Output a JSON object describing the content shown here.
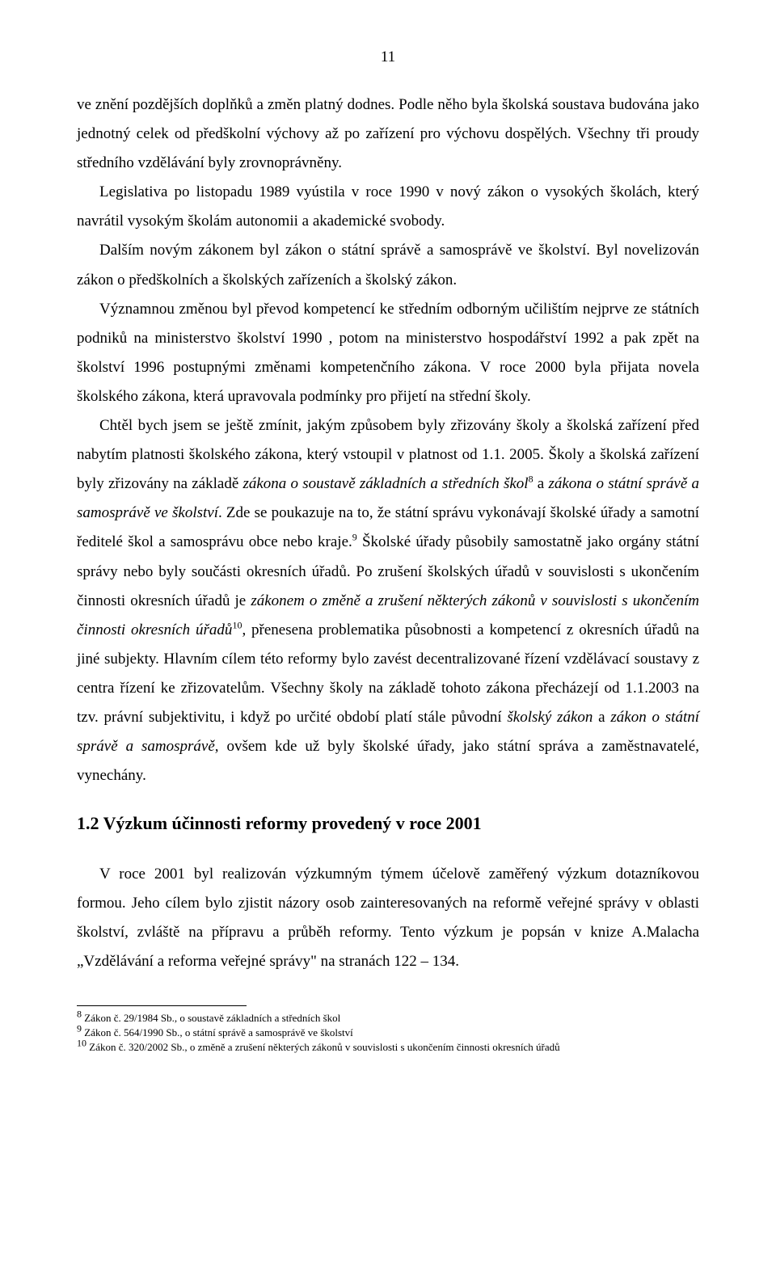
{
  "page_number": "11",
  "paragraphs": {
    "p1a": "ve znění pozdějších doplňků a změn platný dodnes. Podle něho byla školská soustava budována jako jednotný celek od předškolní výchovy až po zařízení pro výchovu dospělých. Všechny tři proudy středního vzdělávání byly zrovnoprávněny.",
    "p1b_indent": "Legislativa po listopadu 1989 vyústila v roce 1990 v nový zákon o vysokých školách, který navrátil vysokým školám autonomii a akademické svobody.",
    "p2_indent": "Dalším novým zákonem byl zákon o státní správě a samosprávě ve školství. Byl novelizován zákon o předškolních a školských zařízeních a školský zákon.",
    "p3_indent": "Významnou změnou byl převod kompetencí ke středním odborným učilištím nejprve ze státních podniků na ministerstvo školství  1990 , potom na ministerstvo hospodářství  1992  a pak zpět na školství  1996  postupnými změnami kompetenčního zákona. V roce 2000 byla přijata novela školského zákona, která upravovala podmínky pro přijetí na střední školy.",
    "p4_a": "Chtěl bych jsem se ještě zmínit, jakým způsobem byly zřizovány školy a školská zařízení před nabytím platnosti školského zákona, který vstoupil v platnost od 1.1. 2005. Školy a školská zařízení byly zřizovány na základě ",
    "p4_it1": "zákona  o soustavě základních a středních škol",
    "p4_sup1": "8",
    "p4_b": " a ",
    "p4_it2": "zákona o státní správě a samosprávě ve školství",
    "p4_c": ". Zde se poukazuje na to, že státní správu vykonávají školské úřady a samotní ředitelé škol a samosprávu obce nebo kraje.",
    "p4_sup2": "9",
    "p4_d": " Školské úřady působily samostatně jako orgány státní správy nebo byly součásti okresních úřadů. Po zrušení školských úřadů v souvislosti s ukončením činnosti okresních úřadů  je ",
    "p4_it3": "zákonem  o změně  a zrušení některých zákonů v souvislosti s ukončením činnosti okresních úřadů",
    "p4_sup3": "10",
    "p4_e": ", přenesena problematika působnosti a kompetencí z okresních úřadů na jiné subjekty. Hlavním cílem této reformy bylo zavést decentralizované řízení vzdělávací soustavy z centra řízení  ke zřizovatelům. Všechny školy na základě tohoto zákona přecházejí od 1.1.2003 na tzv. právní subjektivitu, i když po určité období platí stále původní ",
    "p4_it4": "školský zákon",
    "p4_f": " a ",
    "p4_it5": "zákon o státní správě a samosprávě",
    "p4_g": ", ovšem kde už byly školské úřady, jako státní správa a zaměstnavatelé, vynechány."
  },
  "heading": "1.2  Výzkum účinnosti reformy provedený v roce 2001",
  "p5_indent": "V roce 2001 byl realizován výzkumným týmem účelově zaměřený výzkum dotazníkovou formou. Jeho cílem bylo zjistit názory osob zainteresovaných na reformě veřejné správy v oblasti školství, zvláště na přípravu a průběh reformy. Tento výzkum je popsán v knize A.Malacha „Vzdělávání a reforma veřejné správy\" na stranách 122 – 134.",
  "footnotes": {
    "fn8_mark": "8",
    "fn8_text": "  Zákon č.   29/1984 Sb., o soustavě základních a středních škol",
    "fn9_mark": "9",
    "fn9_text": "  Zákon č. 564/1990 Sb., o státní správě a samosprávě ve školství",
    "fn10_mark": "10",
    "fn10_text": " Zákon  č. 320/2002 Sb., o změně a zrušení některých zákonů v souvislosti s ukončením činnosti okresních úřadů"
  }
}
